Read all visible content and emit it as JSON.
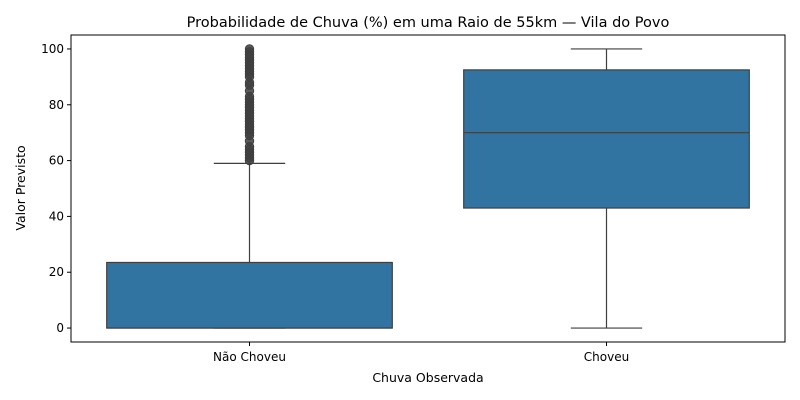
{
  "chart_data": {
    "type": "box",
    "title": "Probabilidade de Chuva (%) em uma Raio de 55km — Vila do Povo",
    "xlabel": "Chuva Observada",
    "ylabel": "Valor Previsto",
    "ylim": [
      -5,
      105
    ],
    "yticks": [
      0,
      20,
      40,
      60,
      80,
      100
    ],
    "grid": false,
    "legend": "none",
    "categories": [
      "Não Choveu",
      "Choveu"
    ],
    "box_color": "#3274a1",
    "line_color": "#3f3f3f",
    "boxes": [
      {
        "category": "Não Choveu",
        "whisker_low": 0,
        "q1": 0,
        "median": 0,
        "q3": 23.5,
        "whisker_high": 59,
        "outliers": [
          60,
          61,
          62,
          63,
          64,
          65,
          67,
          69,
          70,
          71,
          72,
          73,
          74,
          75,
          76,
          77,
          78,
          79,
          80,
          81,
          82,
          83,
          85,
          87,
          88,
          90,
          91,
          92,
          93,
          94,
          95,
          96,
          97,
          98,
          99,
          100
        ]
      },
      {
        "category": "Choveu",
        "whisker_low": 0,
        "q1": 43,
        "median": 70,
        "q3": 92.5,
        "whisker_high": 100,
        "outliers": []
      }
    ]
  }
}
